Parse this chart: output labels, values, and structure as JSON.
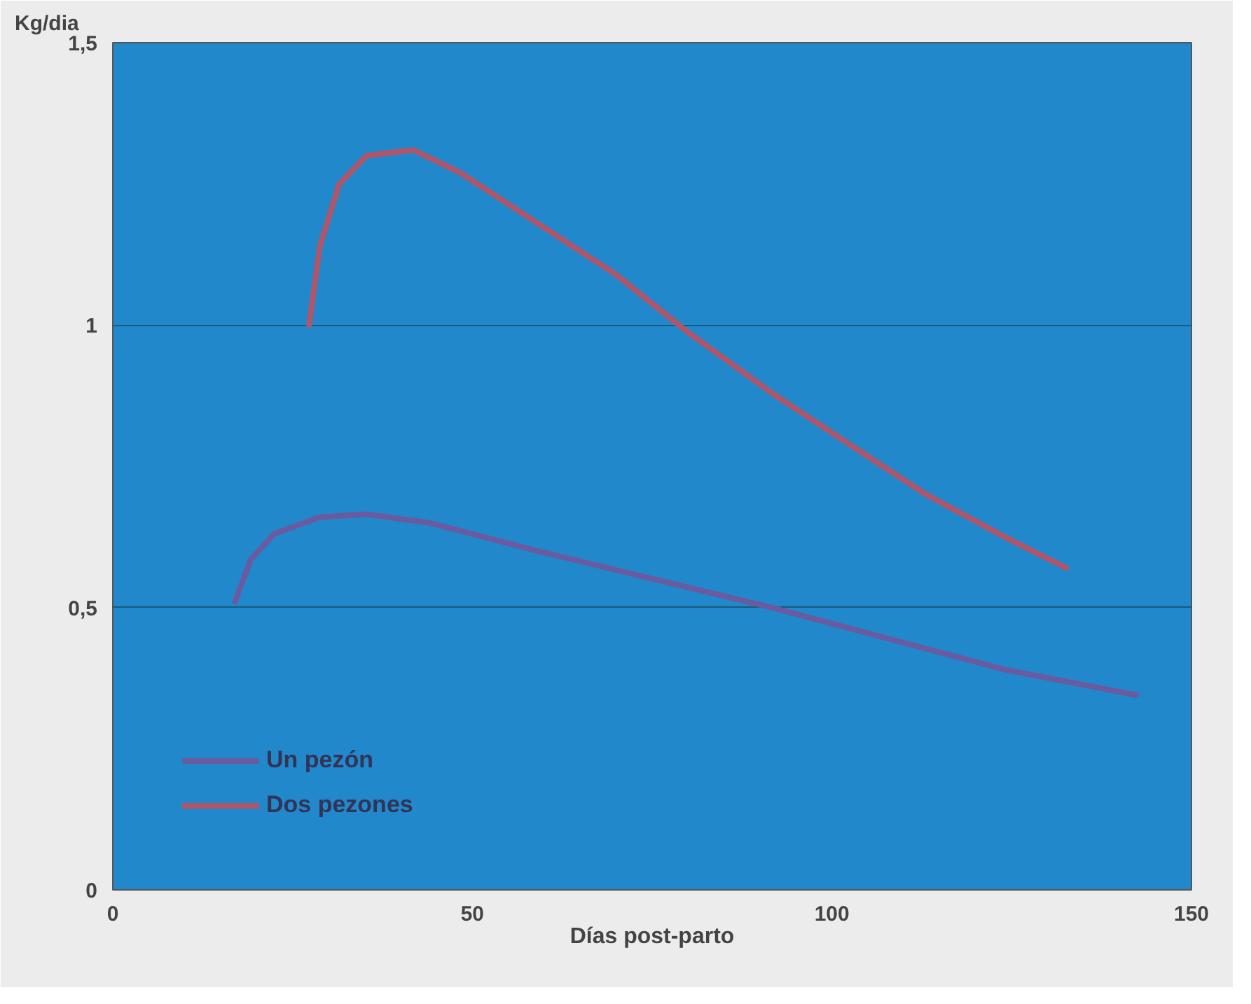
{
  "chart_data": {
    "type": "line",
    "ylabel": "Kg/dia",
    "xlabel": "Días post-parto",
    "xlim": [
      0,
      150
    ],
    "ylim": [
      0,
      1.5
    ],
    "xticks": [
      0,
      50,
      100,
      150
    ],
    "yticks": [
      0,
      {
        "value": 0.5,
        "label": "0,5"
      },
      1,
      {
        "value": 1.5,
        "label": "1,5"
      }
    ],
    "grid": "y",
    "legend": "bottom left",
    "marker": "none",
    "line_style": "solid",
    "series": [
      {
        "name": "Un pezón",
        "color": "#6a5aa0",
        "x": [
          17.0,
          19.2,
          22.4,
          28.8,
          35.3,
          44,
          59.1,
          75.3,
          91.6,
          107.8,
          124,
          142.3
        ],
        "values": [
          0.51,
          0.585,
          0.63,
          0.66,
          0.665,
          0.65,
          0.6,
          0.55,
          0.5,
          0.445,
          0.39,
          0.345
        ]
      },
      {
        "name": "Dos pezones",
        "color": "#b0566a",
        "x": [
          27.3,
          28.8,
          31.5,
          35.3,
          41.8,
          48.3,
          59.1,
          69.9,
          79.7,
          91.6,
          102.3,
          113.1,
          124,
          132.6
        ],
        "values": [
          1.0,
          1.14,
          1.25,
          1.3,
          1.31,
          1.27,
          1.18,
          1.09,
          0.99,
          0.88,
          0.79,
          0.7,
          0.625,
          0.57
        ]
      }
    ]
  }
}
